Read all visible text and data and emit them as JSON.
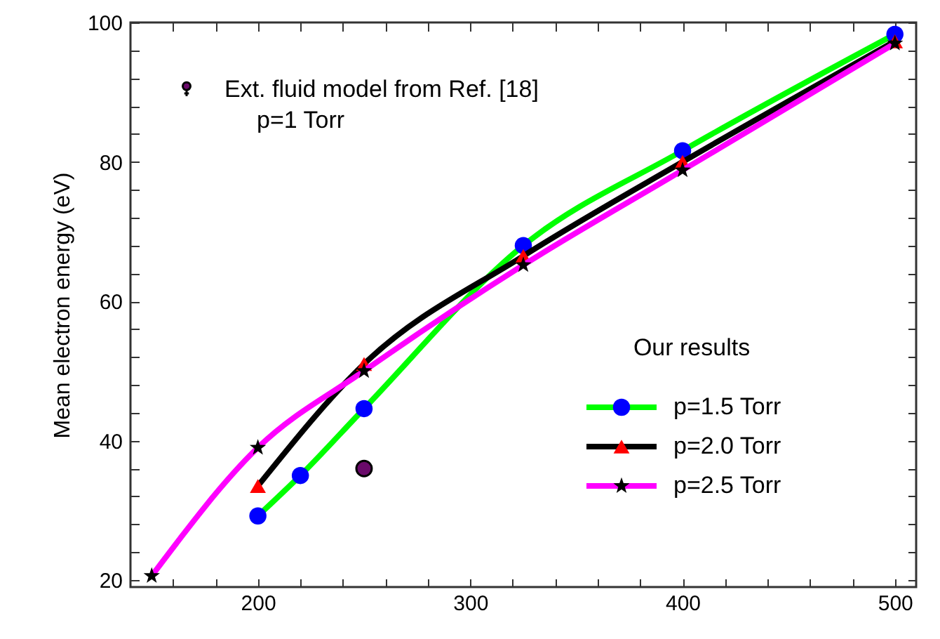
{
  "chart_data": {
    "type": "line",
    "ylabel": "Mean electron energy (eV)",
    "legend_title": "Our results",
    "legend": "bottom right",
    "grid": false,
    "line_style": "solid",
    "xlim": [
      140,
      510
    ],
    "ylim": [
      19,
      100
    ],
    "xticks": [
      {
        "value": 160,
        "label": null
      },
      {
        "value": 180,
        "label": null
      },
      200,
      {
        "value": 220,
        "label": null
      },
      {
        "value": 240,
        "label": null
      },
      {
        "value": 260,
        "label": null
      },
      {
        "value": 280,
        "label": null
      },
      300,
      {
        "value": 320,
        "label": null
      },
      {
        "value": 340,
        "label": null
      },
      {
        "value": 360,
        "label": null
      },
      {
        "value": 380,
        "label": null
      },
      400,
      {
        "value": 420,
        "label": null
      },
      {
        "value": 440,
        "label": null
      },
      {
        "value": 460,
        "label": null
      },
      {
        "value": 480,
        "label": null
      },
      500
    ],
    "yticks": [
      20,
      {
        "value": 24,
        "label": null
      },
      {
        "value": 28,
        "label": null
      },
      {
        "value": 32,
        "label": null
      },
      {
        "value": 36,
        "label": null
      },
      40,
      {
        "value": 44,
        "label": null
      },
      {
        "value": 48,
        "label": null
      },
      {
        "value": 52,
        "label": null
      },
      {
        "value": 56,
        "label": null
      },
      60,
      {
        "value": 64,
        "label": null
      },
      {
        "value": 68,
        "label": null
      },
      {
        "value": 72,
        "label": null
      },
      {
        "value": 76,
        "label": null
      },
      80,
      {
        "value": 84,
        "label": null
      },
      {
        "value": 88,
        "label": null
      },
      {
        "value": 92,
        "label": null
      },
      {
        "value": 96,
        "label": null
      },
      100
    ],
    "series": [
      {
        "type": "scatter",
        "marker": "circle",
        "color": "#6a0a6a",
        "x": [
          250
        ],
        "values": [
          36
        ]
      },
      {
        "name": "p=1.5  Torr",
        "marker": "circle",
        "color": "#00ff00",
        "colors": [
          "#0000ff",
          "#0000ff",
          "#0000ff",
          "#0000ff",
          "#0000ff",
          "#0000ff"
        ],
        "x": [
          200,
          220,
          250,
          325,
          400,
          500
        ],
        "values": [
          29.2,
          35,
          44.6,
          68,
          81.6,
          98.3
        ]
      },
      {
        "name": "p=2.0  Torr",
        "marker": "triangle",
        "color": "#000000",
        "colors": [
          "#ff0000",
          "#ff0000",
          "#ff0000",
          "#ff0000",
          "#ff0000"
        ],
        "x": [
          200,
          250,
          325,
          400,
          500
        ],
        "values": [
          33.5,
          51,
          66.5,
          80,
          97.3
        ]
      },
      {
        "name": "p=2.5  Torr",
        "marker": "star",
        "color": "#ff00ff",
        "colors": [
          "#000000",
          "#000000",
          "#000000",
          "#000000",
          "#000000",
          "#000000"
        ],
        "x": [
          150,
          200,
          250,
          325,
          400,
          500
        ],
        "values": [
          20.6,
          39,
          50,
          65.2,
          78.8,
          97
        ]
      }
    ],
    "annotations": [
      "Ext. fluid model from Ref. [18]",
      "p=1  Torr"
    ]
  }
}
